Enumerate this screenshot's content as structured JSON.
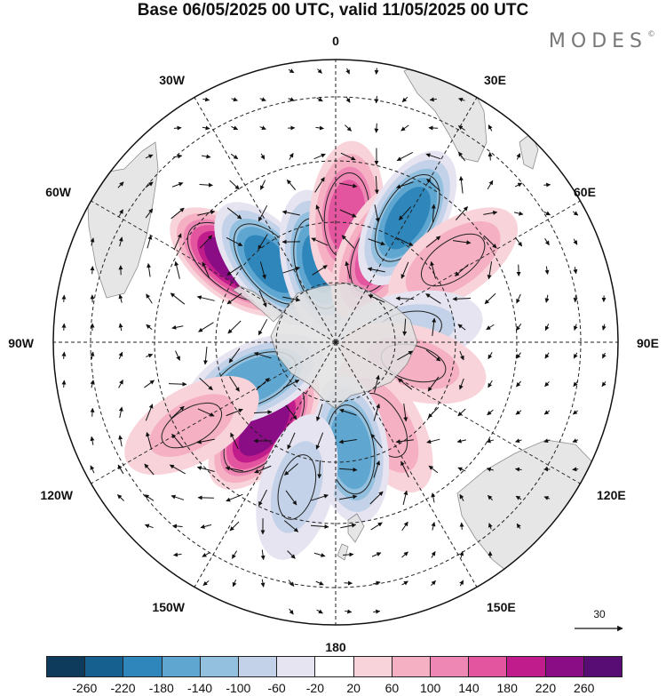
{
  "title": "Base 06/05/2025 00 UTC, valid 11/05/2025 00 UTC",
  "logo": "MODES",
  "logo_mark": "©",
  "projection": "south-polar-stereographic",
  "longitude_labels": {
    "top": "0",
    "top_right": "30E",
    "upper_right": "60E",
    "right": "90E",
    "lower_right": "120E",
    "bottom_right": "150E",
    "bottom": "180",
    "bottom_left": "150W",
    "lower_left": "120W",
    "left": "90W",
    "upper_left": "60W",
    "top_left": "30W"
  },
  "reference_vector": {
    "label": "30"
  },
  "colorbar": {
    "colors": [
      "#0e3a5c",
      "#15608e",
      "#2f86bb",
      "#5fa6d0",
      "#93c0de",
      "#c3d2e8",
      "#e6e4f1",
      "#ffffff",
      "#f8d4da",
      "#f5b0c4",
      "#ef87b4",
      "#e3559f",
      "#c11c8c",
      "#8b0d86",
      "#570d74"
    ],
    "tick_labels": [
      "-260",
      "-220",
      "-180",
      "-140",
      "-100",
      "-60",
      "-20",
      "20",
      "60",
      "100",
      "140",
      "180",
      "220",
      "260"
    ]
  },
  "anomaly_centers": [
    {
      "lon": -52,
      "lat": -46,
      "value": 250
    },
    {
      "lon": -40,
      "lat": -55,
      "value": -200
    },
    {
      "lon": -12,
      "lat": -62,
      "value": -180
    },
    {
      "lon": 5,
      "lat": -47,
      "value": 150
    },
    {
      "lon": 25,
      "lat": -56,
      "value": 150
    },
    {
      "lon": 30,
      "lat": -42,
      "value": -200
    },
    {
      "lon": 55,
      "lat": -42,
      "value": 90
    },
    {
      "lon": 80,
      "lat": -64,
      "value": -60
    },
    {
      "lon": 105,
      "lat": -62,
      "value": 60
    },
    {
      "lon": 150,
      "lat": -57,
      "value": 80
    },
    {
      "lon": 172,
      "lat": -53,
      "value": -170
    },
    {
      "lon": -140,
      "lat": -52,
      "value": 250
    },
    {
      "lon": -115,
      "lat": -59,
      "value": -170
    },
    {
      "lon": -165,
      "lat": -40,
      "value": -60
    },
    {
      "lon": -120,
      "lat": -35,
      "value": 60
    }
  ]
}
